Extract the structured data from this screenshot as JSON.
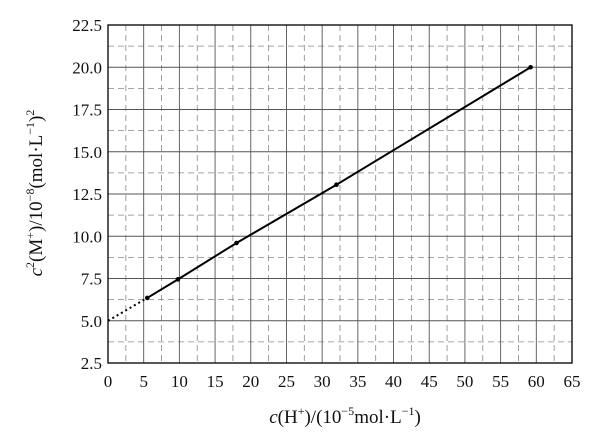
{
  "chart_data": {
    "type": "line",
    "x_range": [
      0,
      65
    ],
    "y_range": [
      2.5,
      22.5
    ],
    "x_ticks": [
      "0",
      "5",
      "10",
      "15",
      "20",
      "25",
      "30",
      "35",
      "40",
      "45",
      "50",
      "55",
      "60",
      "65"
    ],
    "y_ticks": [
      "2.5",
      "5.0",
      "7.5",
      "10.0",
      "12.5",
      "15.0",
      "17.5",
      "20.0",
      "22.5"
    ],
    "grid": true,
    "xlabel": {
      "c": "c",
      "a": "(H",
      "plus": "+",
      "b": ")/(10",
      "exp": "−5",
      "c2": "mol·L",
      "exp2": "−1",
      "d": ")"
    },
    "ylabel": {
      "c": "c",
      "sq": "2",
      "a": "(M",
      "plus": "+",
      "b": ")/10",
      "exp": "−8",
      "c2": "(mol·L",
      "exp2": "−1",
      "d": ")",
      "sq2": "2"
    },
    "series": [
      {
        "points": [
          {
            "x": 5.5,
            "y": 6.35
          },
          {
            "x": 9.8,
            "y": 7.45
          },
          {
            "x": 18.0,
            "y": 9.6
          },
          {
            "x": 32.0,
            "y": 13.05
          },
          {
            "x": 59.2,
            "y": 20.0
          }
        ],
        "extrapolation": {
          "from": [
            0,
            5.0
          ],
          "to": [
            5.5,
            6.35
          ]
        }
      }
    ]
  }
}
